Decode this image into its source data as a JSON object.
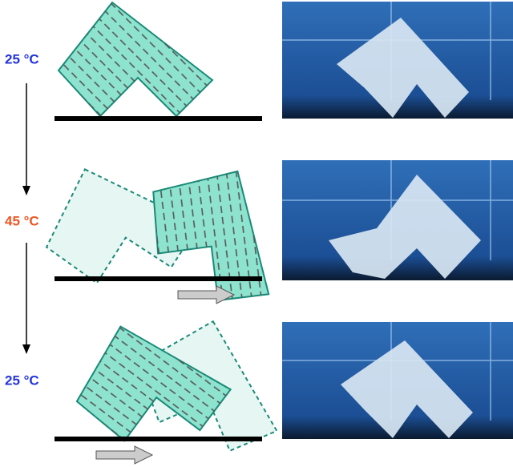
{
  "labels": [
    "25 °C",
    "45 °C",
    "25 °C"
  ]
}
